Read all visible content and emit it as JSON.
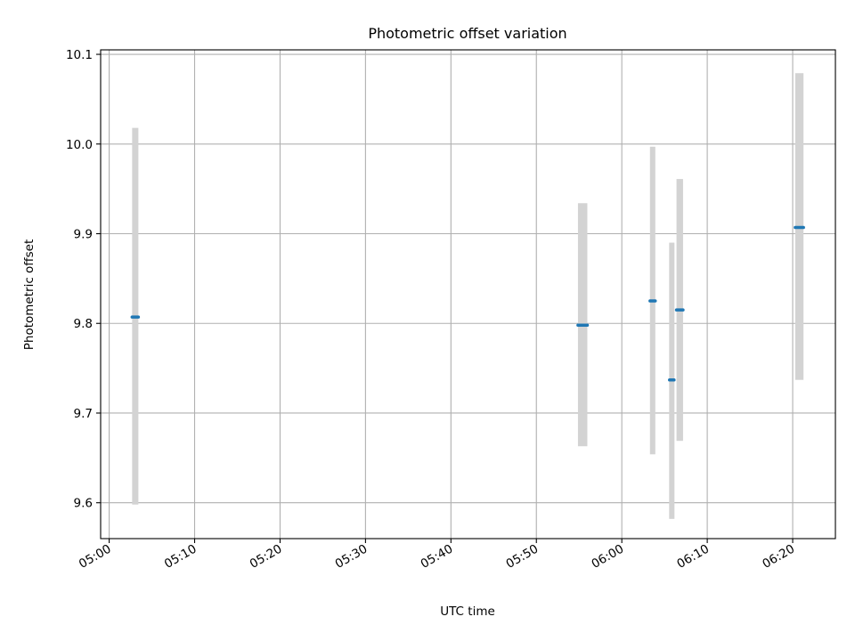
{
  "chart_data": {
    "type": "scatter",
    "title": "Photometric offset variation",
    "xlabel": "UTC time",
    "ylabel": "Photometric offset",
    "x_tick_labels": [
      "05:00",
      "05:10",
      "05:20",
      "05:30",
      "05:40",
      "05:50",
      "06:00",
      "06:10",
      "06:20"
    ],
    "y_tick_labels": [
      "9.6",
      "9.7",
      "9.8",
      "9.9",
      "10.0",
      "10.1"
    ],
    "y_ticks": [
      9.6,
      9.7,
      9.8,
      9.9,
      10.0,
      10.1
    ],
    "x_range": [
      "04:59",
      "06:25"
    ],
    "ylim": [
      9.56,
      10.105
    ],
    "grid": true,
    "marker_color": "#1f77b4",
    "errorbar_color": "#d3d3d3",
    "points": [
      {
        "x": [
          "05:02:41",
          "05:03:25"
        ],
        "y": 9.807,
        "err_low": 9.598,
        "err_high": 10.018
      },
      {
        "x": [
          "05:54:52",
          "05:55:58"
        ],
        "y": 9.798,
        "err_low": 9.663,
        "err_high": 9.934
      },
      {
        "x": [
          "06:03:18",
          "06:03:55"
        ],
        "y": 9.825,
        "err_low": 9.654,
        "err_high": 9.997
      },
      {
        "x": [
          "06:05:35",
          "06:06:07"
        ],
        "y": 9.737,
        "err_low": 9.582,
        "err_high": 9.89
      },
      {
        "x": [
          "06:06:24",
          "06:07:10"
        ],
        "y": 9.815,
        "err_low": 9.669,
        "err_high": 9.961
      },
      {
        "x": [
          "06:20:18",
          "06:21:16"
        ],
        "y": 9.907,
        "err_low": 9.737,
        "err_high": 10.079
      }
    ]
  }
}
